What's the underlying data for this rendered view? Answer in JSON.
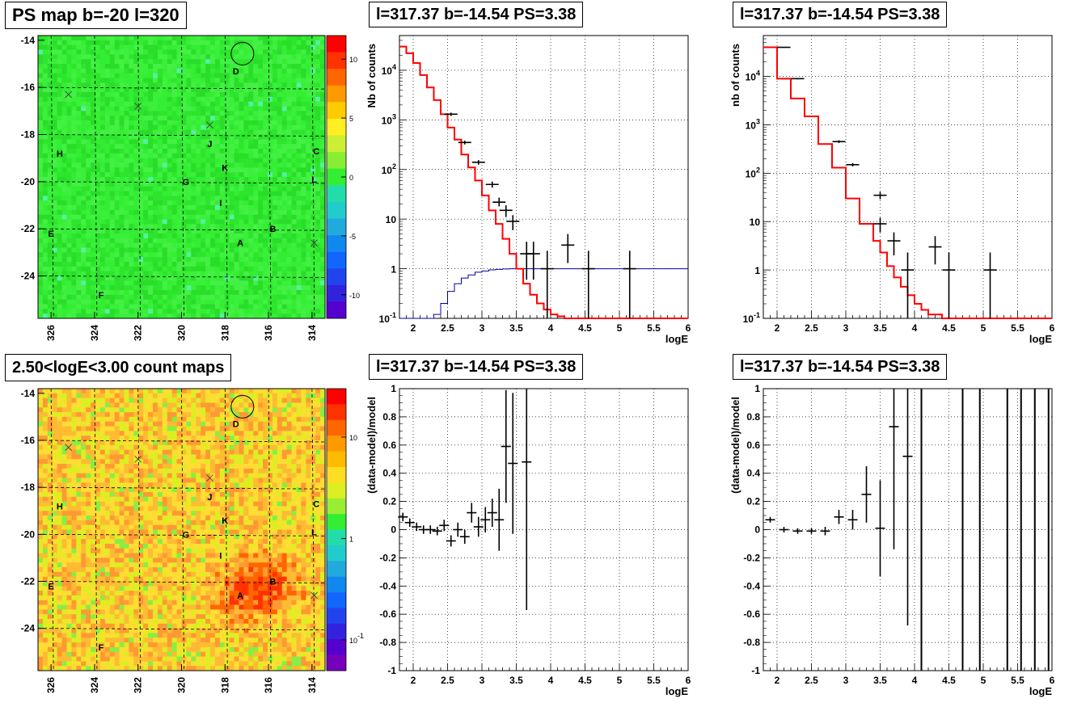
{
  "titles": {
    "map_top": "PS map b=-20 l=320",
    "map_bottom": "2.50<logE<3.00 count maps",
    "spec_mid": "l=317.37 b=-14.54 PS=3.38",
    "spec_right": "l=317.37 b=-14.54 PS=3.38",
    "resid_mid": "l=317.37 b=-14.54 PS=3.38",
    "resid_right": "l=317.37 b=-14.54 PS=3.38"
  },
  "colors": {
    "data": "#000000",
    "model": "#ff0000",
    "aux": "#0000aa",
    "grid": "#000000"
  },
  "chart_data": [
    {
      "id": "ps_map",
      "type": "heatmap",
      "title": "PS map b=-20 l=320",
      "xlabel": "",
      "ylabel": "",
      "xlim": [
        326.6,
        313.4
      ],
      "ylim": [
        -25.8,
        -13.8
      ],
      "xticks": [
        "326",
        "324",
        "322",
        "320",
        "318",
        "316",
        "314"
      ],
      "yticks": [
        "-14",
        "-16",
        "-18",
        "-20",
        "-22",
        "-24"
      ],
      "colorbar": {
        "scale": "linear",
        "range": [
          -12,
          12
        ],
        "ticks": [
          "10",
          "5",
          "0",
          "-5",
          "-10"
        ]
      },
      "sources": [
        {
          "label": "A",
          "l": 317.3,
          "b": -22.6
        },
        {
          "label": "B",
          "l": 315.8,
          "b": -22.0
        },
        {
          "label": "C",
          "l": 313.8,
          "b": -18.7
        },
        {
          "label": "D",
          "l": 317.5,
          "b": -15.3
        },
        {
          "label": "E",
          "l": 326.0,
          "b": -22.2
        },
        {
          "label": "F",
          "l": 323.7,
          "b": -24.8
        },
        {
          "label": "G",
          "l": 319.8,
          "b": -20.0
        },
        {
          "label": "H",
          "l": 325.6,
          "b": -18.8
        },
        {
          "label": "I",
          "l": 318.2,
          "b": -20.9
        },
        {
          "label": "J",
          "l": 318.7,
          "b": -18.4
        },
        {
          "label": "K",
          "l": 318.0,
          "b": -19.4
        },
        {
          "label": "L",
          "l": 313.9,
          "b": -19.9
        }
      ],
      "crosses": [
        {
          "l": 325.2,
          "b": -16.3
        },
        {
          "l": 322.0,
          "b": -16.8
        },
        {
          "l": 318.7,
          "b": -17.6
        },
        {
          "l": 313.9,
          "b": -22.6
        }
      ],
      "circle": {
        "l": 317.2,
        "b": -14.5
      }
    },
    {
      "id": "count_map",
      "type": "heatmap",
      "title": "2.50<logE<3.00 count maps",
      "xlim": [
        326.6,
        313.4
      ],
      "ylim": [
        -25.8,
        -13.8
      ],
      "xticks": [
        "326",
        "324",
        "322",
        "320",
        "318",
        "316",
        "314"
      ],
      "yticks": [
        "-14",
        "-16",
        "-18",
        "-20",
        "-22",
        "-24"
      ],
      "colorbar": {
        "scale": "log",
        "range": [
          0.05,
          30
        ],
        "ticks": [
          "10",
          "1",
          "10^-1"
        ]
      },
      "hotspots": [
        {
          "label": "A",
          "l": 317.3,
          "b": -22.6
        },
        {
          "label": "B",
          "l": 315.8,
          "b": -22.0
        }
      ]
    },
    {
      "id": "spectrum_mid",
      "type": "line",
      "title": "l=317.37 b=-14.54 PS=3.38",
      "xlabel": "logE",
      "ylabel": "Nb of counts",
      "xlim": [
        1.8,
        6
      ],
      "ylim": [
        0.1,
        50000
      ],
      "yscale": "log",
      "xticks": [
        "2",
        "2.5",
        "3",
        "3.5",
        "4",
        "4.5",
        "5",
        "5.5",
        "6"
      ],
      "yticks": [
        "10^-1",
        "1",
        "10",
        "10^2",
        "10^3",
        "10^4"
      ],
      "model_steps": {
        "edges": [
          1.8,
          1.9,
          2.0,
          2.1,
          2.2,
          2.3,
          2.4,
          2.5,
          2.6,
          2.7,
          2.8,
          2.9,
          3.0,
          3.1,
          3.2,
          3.3,
          3.4,
          3.5,
          3.6,
          3.7,
          3.8,
          3.9,
          4.0,
          4.1,
          4.2,
          6.0
        ],
        "values": [
          30000,
          22000,
          14000,
          8000,
          4500,
          2500,
          1300,
          700,
          400,
          200,
          110,
          60,
          30,
          15,
          8,
          4,
          2,
          1,
          0.5,
          0.3,
          0.2,
          0.15,
          0.12,
          0.11,
          0.1
        ]
      },
      "aux_steps": {
        "edges": [
          1.8,
          2.3,
          2.4,
          2.5,
          2.6,
          2.7,
          2.8,
          2.9,
          3.0,
          3.1,
          3.2,
          3.3,
          3.4,
          3.5,
          6.0
        ],
        "values": [
          0.1,
          0.12,
          0.2,
          0.35,
          0.5,
          0.65,
          0.75,
          0.85,
          0.9,
          0.95,
          0.97,
          0.99,
          1.0,
          1.0
        ]
      },
      "data_points": [
        {
          "x": 2.55,
          "y": 1300,
          "ylo": 1200,
          "yhi": 1400
        },
        {
          "x": 2.75,
          "y": 350,
          "ylo": 320,
          "yhi": 380
        },
        {
          "x": 2.95,
          "y": 140,
          "ylo": 125,
          "yhi": 155
        },
        {
          "x": 3.15,
          "y": 50,
          "ylo": 43,
          "yhi": 57
        },
        {
          "x": 3.25,
          "y": 22,
          "ylo": 18,
          "yhi": 27
        },
        {
          "x": 3.35,
          "y": 15,
          "ylo": 11,
          "yhi": 19
        },
        {
          "x": 3.45,
          "y": 9,
          "ylo": 6,
          "yhi": 12
        },
        {
          "x": 3.65,
          "y": 2,
          "ylo": 0.6,
          "yhi": 3.5
        },
        {
          "x": 3.75,
          "y": 2,
          "ylo": 0.6,
          "yhi": 3.5
        },
        {
          "x": 3.95,
          "y": 1,
          "ylo": 0.1,
          "yhi": 2.3
        },
        {
          "x": 4.25,
          "y": 3,
          "ylo": 1.3,
          "yhi": 5
        },
        {
          "x": 4.55,
          "y": 1,
          "ylo": 0.1,
          "yhi": 2.3
        },
        {
          "x": 5.15,
          "y": 1,
          "ylo": 0.1,
          "yhi": 2.3
        }
      ]
    },
    {
      "id": "spectrum_right",
      "type": "line",
      "title": "l=317.37 b=-14.54 PS=3.38",
      "xlabel": "logE",
      "ylabel": "nb of counts",
      "xlim": [
        1.8,
        6
      ],
      "ylim": [
        0.1,
        70000
      ],
      "yscale": "log",
      "xticks": [
        "2",
        "2.5",
        "3",
        "3.5",
        "4",
        "4.5",
        "5",
        "5.5",
        "6"
      ],
      "yticks": [
        "10^-1",
        "1",
        "10",
        "10^2",
        "10^3",
        "10^4"
      ],
      "model_steps": {
        "edges": [
          1.8,
          2.0,
          2.2,
          2.4,
          2.6,
          2.8,
          3.0,
          3.2,
          3.4,
          3.5,
          3.6,
          3.7,
          3.8,
          3.9,
          4.0,
          4.1,
          4.2,
          4.4,
          6.0
        ],
        "values": [
          40000,
          9000,
          3500,
          1500,
          400,
          130,
          30,
          9,
          4,
          2.3,
          1.2,
          0.7,
          0.45,
          0.3,
          0.2,
          0.15,
          0.12,
          0.1
        ]
      },
      "data_points": [
        {
          "x": 2.1,
          "y": 40000,
          "ylo": 39000,
          "yhi": 41000
        },
        {
          "x": 2.3,
          "y": 9000,
          "ylo": 8700,
          "yhi": 9300
        },
        {
          "x": 2.9,
          "y": 450,
          "ylo": 420,
          "yhi": 480
        },
        {
          "x": 3.1,
          "y": 150,
          "ylo": 138,
          "yhi": 162
        },
        {
          "x": 3.5,
          "y": 35,
          "ylo": 29,
          "yhi": 41
        },
        {
          "x": 3.5,
          "y": 9,
          "ylo": 6,
          "yhi": 12
        },
        {
          "x": 3.7,
          "y": 4,
          "ylo": 2,
          "yhi": 6
        },
        {
          "x": 3.9,
          "y": 1,
          "ylo": 0.1,
          "yhi": 2.3
        },
        {
          "x": 4.3,
          "y": 3,
          "ylo": 1.3,
          "yhi": 5
        },
        {
          "x": 4.5,
          "y": 1,
          "ylo": 0.1,
          "yhi": 2.3
        },
        {
          "x": 5.1,
          "y": 1,
          "ylo": 0.1,
          "yhi": 2.3
        }
      ]
    },
    {
      "id": "residual_mid",
      "type": "scatter",
      "title": "l=317.37 b=-14.54 PS=3.38",
      "xlabel": "logE",
      "ylabel": "(data-model)/model",
      "xlim": [
        1.8,
        6
      ],
      "ylim": [
        -1,
        1
      ],
      "xticks": [
        "2",
        "2.5",
        "3",
        "3.5",
        "4",
        "4.5",
        "5",
        "5.5",
        "6"
      ],
      "yticks": [
        "1",
        "0.8",
        "0.6",
        "0.4",
        "0.2",
        "0",
        "-0.2",
        "-0.4",
        "-0.6",
        "-0.8",
        "-1"
      ],
      "data_points": [
        {
          "x": 1.85,
          "y": 0.09,
          "err": 0.03
        },
        {
          "x": 1.95,
          "y": 0.05,
          "err": 0.03
        },
        {
          "x": 2.05,
          "y": 0.02,
          "err": 0.03
        },
        {
          "x": 2.15,
          "y": 0.0,
          "err": 0.03
        },
        {
          "x": 2.25,
          "y": 0.0,
          "err": 0.03
        },
        {
          "x": 2.35,
          "y": -0.01,
          "err": 0.03
        },
        {
          "x": 2.45,
          "y": 0.03,
          "err": 0.04
        },
        {
          "x": 2.55,
          "y": -0.08,
          "err": 0.04
        },
        {
          "x": 2.65,
          "y": 0.0,
          "err": 0.05
        },
        {
          "x": 2.75,
          "y": -0.05,
          "err": 0.05
        },
        {
          "x": 2.85,
          "y": 0.12,
          "err": 0.07
        },
        {
          "x": 2.95,
          "y": 0.02,
          "err": 0.07
        },
        {
          "x": 3.05,
          "y": 0.07,
          "err": 0.09
        },
        {
          "x": 3.15,
          "y": 0.12,
          "err": 0.1
        },
        {
          "x": 3.25,
          "y": 0.07,
          "err": 0.22
        },
        {
          "x": 3.35,
          "y": 0.59,
          "err": 0.4
        },
        {
          "x": 3.45,
          "y": 0.47,
          "err": 0.5
        },
        {
          "x": 3.65,
          "y": 0.48,
          "err": 1.05
        }
      ]
    },
    {
      "id": "residual_right",
      "type": "scatter",
      "title": "l=317.37 b=-14.54 PS=3.38",
      "xlabel": "logE",
      "ylabel": "(data-model)/model",
      "xlim": [
        1.8,
        6
      ],
      "ylim": [
        -1,
        1
      ],
      "xticks": [
        "2",
        "2.5",
        "3",
        "3.5",
        "4",
        "4.5",
        "5",
        "5.5",
        "6"
      ],
      "yticks": [
        "1",
        "0.8",
        "0.6",
        "0.4",
        "0.2",
        "0",
        "-0.2",
        "-0.4",
        "-0.6",
        "-0.8",
        "-1"
      ],
      "data_points": [
        {
          "x": 1.9,
          "y": 0.07,
          "err": 0.02
        },
        {
          "x": 2.1,
          "y": 0.0,
          "err": 0.02
        },
        {
          "x": 2.3,
          "y": -0.01,
          "err": 0.02
        },
        {
          "x": 2.5,
          "y": -0.01,
          "err": 0.02
        },
        {
          "x": 2.7,
          "y": -0.01,
          "err": 0.03
        },
        {
          "x": 2.9,
          "y": 0.09,
          "err": 0.05
        },
        {
          "x": 3.1,
          "y": 0.07,
          "err": 0.07
        },
        {
          "x": 3.3,
          "y": 0.25,
          "err": 0.2
        },
        {
          "x": 3.5,
          "y": 0.01,
          "err": 0.34
        },
        {
          "x": 3.7,
          "y": 0.73,
          "err": 0.87
        },
        {
          "x": 3.9,
          "y": 0.52,
          "err": 1.2
        }
      ],
      "vertical_bars": [
        4.1,
        4.7,
        4.95,
        5.35,
        5.55,
        5.75,
        5.95
      ]
    }
  ]
}
